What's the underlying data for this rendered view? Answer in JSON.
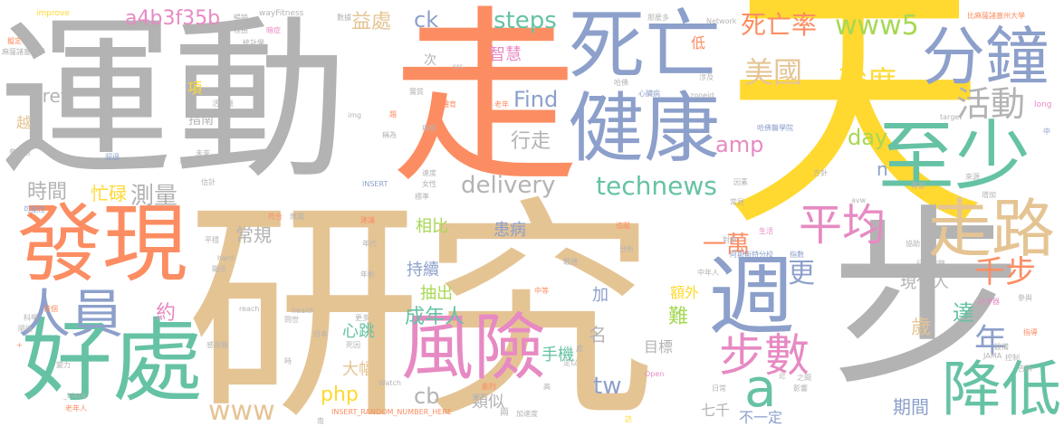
{
  "palette": {
    "gray": "#b3b3b3",
    "tan": "#e5c494",
    "orange": "#fc8d62",
    "blue": "#8da0cb",
    "green": "#66c2a5",
    "lime": "#a6d854",
    "yellow": "#ffd92f",
    "pink": "#e78ac3"
  },
  "words": [
    {
      "text": "運動",
      "color": "gray"
    },
    {
      "text": "研究",
      "color": "tan"
    },
    {
      "text": "走",
      "color": "orange"
    },
    {
      "text": "天",
      "color": "yellow"
    },
    {
      "text": "步",
      "color": "gray"
    },
    {
      "text": "死亡",
      "color": "blue"
    },
    {
      "text": "健康",
      "color": "blue"
    },
    {
      "text": "至少",
      "color": "green"
    },
    {
      "text": "分鐘",
      "color": "blue"
    },
    {
      "text": "發現",
      "color": "orange"
    },
    {
      "text": "好處",
      "color": "green"
    },
    {
      "text": "週",
      "color": "blue"
    },
    {
      "text": "走路",
      "color": "tan"
    },
    {
      "text": "風險",
      "color": "pink"
    },
    {
      "text": "降低",
      "color": "green"
    },
    {
      "text": "人員",
      "color": "blue"
    },
    {
      "text": "平均",
      "color": "pink"
    },
    {
      "text": "步數",
      "color": "pink"
    },
    {
      "text": "a",
      "color": "green"
    },
    {
      "text": "死亡率",
      "color": "orange"
    },
    {
      "text": "美國",
      "color": "tan"
    },
    {
      "text": "強度",
      "color": "yellow"
    },
    {
      "text": "活動",
      "color": "gray"
    },
    {
      "text": "www5",
      "color": "lime"
    },
    {
      "text": "technews",
      "color": "green"
    },
    {
      "text": "delivery",
      "color": "gray"
    },
    {
      "text": "a4b3f35b",
      "color": "pink"
    },
    {
      "text": "ck",
      "color": "blue"
    },
    {
      "text": "steps",
      "color": "green"
    },
    {
      "text": "Find",
      "color": "blue"
    },
    {
      "text": "href",
      "color": "gray"
    },
    {
      "text": "amp",
      "color": "pink"
    },
    {
      "text": "day",
      "color": "lime"
    },
    {
      "text": "tw",
      "color": "blue"
    },
    {
      "text": "www",
      "color": "tan"
    },
    {
      "text": "php",
      "color": "yellow"
    },
    {
      "text": "cb",
      "color": "gray"
    },
    {
      "text": "n",
      "color": "blue"
    },
    {
      "text": "年",
      "color": "blue"
    },
    {
      "text": "千步",
      "color": "orange"
    },
    {
      "text": "一萬",
      "color": "orange"
    },
    {
      "text": "更",
      "color": "blue"
    },
    {
      "text": "益處",
      "color": "tan"
    },
    {
      "text": "智慧",
      "color": "pink"
    },
    {
      "text": "行走",
      "color": "gray"
    },
    {
      "text": "時間",
      "color": "gray"
    },
    {
      "text": "測量",
      "color": "gray"
    },
    {
      "text": "忙碌",
      "color": "yellow"
    },
    {
      "text": "常規",
      "color": "gray"
    },
    {
      "text": "相比",
      "color": "lime"
    },
    {
      "text": "持續",
      "color": "blue"
    },
    {
      "text": "患病",
      "color": "blue"
    },
    {
      "text": "抽出",
      "color": "lime"
    },
    {
      "text": "成年人",
      "color": "green"
    },
    {
      "text": "心跳",
      "color": "green"
    },
    {
      "text": "大幅",
      "color": "tan"
    },
    {
      "text": "手機",
      "color": "green"
    },
    {
      "text": "類似",
      "color": "gray"
    },
    {
      "text": "目標",
      "color": "gray"
    },
    {
      "text": "名",
      "color": "gray"
    },
    {
      "text": "加",
      "color": "blue"
    },
    {
      "text": "約",
      "color": "pink"
    },
    {
      "text": "難",
      "color": "lime"
    },
    {
      "text": "額外",
      "color": "yellow"
    },
    {
      "text": "現代人",
      "color": "gray"
    },
    {
      "text": "歲",
      "color": "tan"
    },
    {
      "text": "達",
      "color": "green"
    },
    {
      "text": "期間",
      "color": "blue"
    },
    {
      "text": "七千",
      "color": "gray"
    },
    {
      "text": "不一定",
      "color": "blue"
    },
    {
      "text": "項",
      "color": "yellow"
    },
    {
      "text": "越",
      "color": "tan"
    },
    {
      "text": "指南",
      "color": "gray"
    },
    {
      "text": "次",
      "color": "gray"
    },
    {
      "text": "低",
      "color": "orange"
    },
    {
      "text": "improve",
      "color": "yellow"
    },
    {
      "text": "wayFitness",
      "color": "gray"
    },
    {
      "text": "Network",
      "color": "gray"
    },
    {
      "text": "Study",
      "color": "yellow"
    },
    {
      "text": "比麻薩諸塞州大學",
      "color": "orange"
    },
    {
      "text": "擬定",
      "color": "orange"
    },
    {
      "text": "麻薩諸塞大學",
      "color": "gray"
    },
    {
      "text": "暢銷",
      "color": "gray"
    },
    {
      "text": "理由",
      "color": "gray"
    },
    {
      "text": "暗症",
      "color": "pink"
    },
    {
      "text": "統計學",
      "color": "gray"
    },
    {
      "text": "數據",
      "color": "gray"
    },
    {
      "text": "那麼多",
      "color": "gray"
    },
    {
      "text": "哈佛",
      "color": "gray"
    },
    {
      "text": "心臟病",
      "color": "blue"
    },
    {
      "text": "zoneid",
      "color": "gray"
    },
    {
      "text": "涉及",
      "color": "gray"
    },
    {
      "text": "long",
      "color": "pink"
    },
    {
      "text": "target",
      "color": "gray"
    },
    {
      "text": "哈佛醫學院",
      "color": "blue"
    },
    {
      "text": "活動量",
      "color": "gray"
    },
    {
      "text": "img",
      "color": "gray"
    },
    {
      "text": "src",
      "color": "gray"
    },
    {
      "text": "實質",
      "color": "gray"
    },
    {
      "text": "體育",
      "color": "orange"
    },
    {
      "text": "老年",
      "color": "orange"
    },
    {
      "text": "趨",
      "color": "orange"
    },
    {
      "text": "癌症",
      "color": "gray"
    },
    {
      "text": "稱為",
      "color": "gray"
    },
    {
      "text": "參與者",
      "color": "gray"
    },
    {
      "text": "超過",
      "color": "blue"
    },
    {
      "text": "未來",
      "color": "gray"
    },
    {
      "text": "加速",
      "color": "gray"
    },
    {
      "text": "速度",
      "color": "gray"
    },
    {
      "text": "女性",
      "color": "gray"
    },
    {
      "text": "INSERT",
      "color": "blue"
    },
    {
      "text": "標準",
      "color": "gray"
    },
    {
      "text": "因素",
      "color": "gray"
    },
    {
      "text": "方針",
      "color": "gray"
    },
    {
      "text": "專家",
      "color": "gray"
    },
    {
      "text": "來源",
      "color": "gray"
    },
    {
      "text": "增加",
      "color": "gray"
    },
    {
      "text": "估計",
      "color": "gray"
    },
    {
      "text": "可能性",
      "color": "blue"
    },
    {
      "text": "符合",
      "color": "orange"
    },
    {
      "text": "無關",
      "color": "gray"
    },
    {
      "text": "建議",
      "color": "orange"
    },
    {
      "text": "追蹤",
      "color": "orange"
    },
    {
      "text": "常見",
      "color": "gray"
    },
    {
      "text": "avw",
      "color": "gray"
    },
    {
      "text": "生活",
      "color": "pink"
    },
    {
      "text": "對象",
      "color": "gray"
    },
    {
      "text": "阿斯斯特分校",
      "color": "blue"
    },
    {
      "text": "指數",
      "color": "blue"
    },
    {
      "text": "協助",
      "color": "gray"
    },
    {
      "text": "hard",
      "color": "gray"
    },
    {
      "text": "平穩",
      "color": "gray"
    },
    {
      "text": "年代",
      "color": "gray"
    },
    {
      "text": "分析",
      "color": "gray"
    },
    {
      "text": "戰禮",
      "color": "gray"
    },
    {
      "text": "顯示",
      "color": "gray"
    },
    {
      "text": "中年人",
      "color": "gray"
    },
    {
      "text": "中等",
      "color": "orange"
    },
    {
      "text": "年齡",
      "color": "gray"
    },
    {
      "text": "行銷策略",
      "color": "gray"
    },
    {
      "text": "計步器",
      "color": "pink"
    },
    {
      "text": "參與",
      "color": "gray"
    },
    {
      "text": "首個",
      "color": "orange"
    },
    {
      "text": "reach",
      "color": "gray"
    },
    {
      "text": "health",
      "color": "gray"
    },
    {
      "text": "更多",
      "color": "gray"
    },
    {
      "text": "問世",
      "color": "gray"
    },
    {
      "text": "日本",
      "color": "gray"
    },
    {
      "text": "死因",
      "color": "gray"
    },
    {
      "text": "感測器",
      "color": "gray"
    },
    {
      "text": "隨後",
      "color": "gray"
    },
    {
      "text": "科學",
      "color": "gray"
    },
    {
      "text": "時",
      "color": "gray"
    },
    {
      "text": "變力",
      "color": "gray"
    },
    {
      "text": "老年人",
      "color": "orange"
    },
    {
      "text": "_blank",
      "color": "gray"
    },
    {
      "text": "Watch",
      "color": "gray"
    },
    {
      "text": "高",
      "color": "gray"
    },
    {
      "text": "處",
      "color": "gray"
    },
    {
      "text": "足以",
      "color": "gray"
    },
    {
      "text": "劇烈",
      "color": "orange"
    },
    {
      "text": "Open",
      "color": "pink"
    },
    {
      "text": "日常",
      "color": "gray"
    },
    {
      "text": "影響",
      "color": "gray"
    },
    {
      "text": "之間",
      "color": "gray"
    },
    {
      "text": "指導",
      "color": "orange"
    },
    {
      "text": "設備",
      "color": "gray"
    },
    {
      "text": "JAMA",
      "color": "gray"
    },
    {
      "text": "控制",
      "color": "gray"
    },
    {
      "text": "告訴",
      "color": "gray"
    },
    {
      "text": "INSERT_RANDOM_NUMBER_HERE",
      "color": "orange"
    },
    {
      "text": "南",
      "color": "gray"
    },
    {
      "text": "加速度",
      "color": "gray"
    },
    {
      "text": "訪",
      "color": "yellow"
    },
    {
      "text": "+",
      "color": "orange"
    },
    {
      "text": "兩",
      "color": "gray"
    },
    {
      "text": "指",
      "color": "gray"
    },
    {
      "text": "中",
      "color": "blue"
    },
    {
      "text": "近",
      "color": "gray"
    }
  ]
}
